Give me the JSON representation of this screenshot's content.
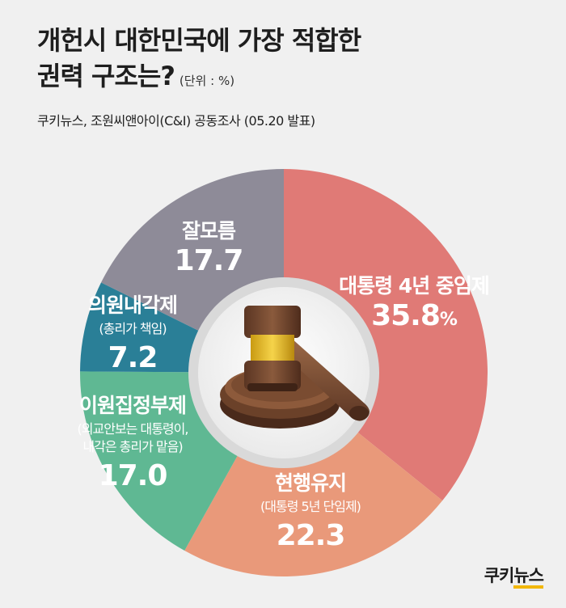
{
  "header": {
    "title_line1": "개헌시 대한민국에 가장 적합한",
    "title_line2": "권력 구조는?",
    "unit": "(단위 : %)",
    "source": "쿠키뉴스, 조원씨앤아이(C&I) 공동조사 (05.20 발표)"
  },
  "logo": {
    "part1": "쿠키",
    "part2": "뉴스"
  },
  "chart_data": {
    "type": "pie",
    "unit": "%",
    "slices": [
      {
        "label": "대통령 4년 중임제",
        "sublabels": [],
        "value": 35.8,
        "display": "35.8",
        "suffix": "%",
        "color": "#e07a76"
      },
      {
        "label": "현행유지",
        "sublabels": [
          "(대통령 5년 단임제)"
        ],
        "value": 22.3,
        "display": "22.3",
        "suffix": "",
        "color": "#e9997a"
      },
      {
        "label": "이원집정부제",
        "sublabels": [
          "(외교안보는 대통령이,",
          "내각은 총리가 맡음)"
        ],
        "value": 17.0,
        "display": "17.0",
        "suffix": "",
        "color": "#5fb893"
      },
      {
        "label": "의원내각제",
        "sublabels": [
          "(총리가 책임)"
        ],
        "value": 7.2,
        "display": "7.2",
        "suffix": "",
        "color": "#2a7f97"
      },
      {
        "label": "잘모름",
        "sublabels": [],
        "value": 17.7,
        "display": "17.7",
        "suffix": "",
        "color": "#8e8b98"
      }
    ]
  }
}
